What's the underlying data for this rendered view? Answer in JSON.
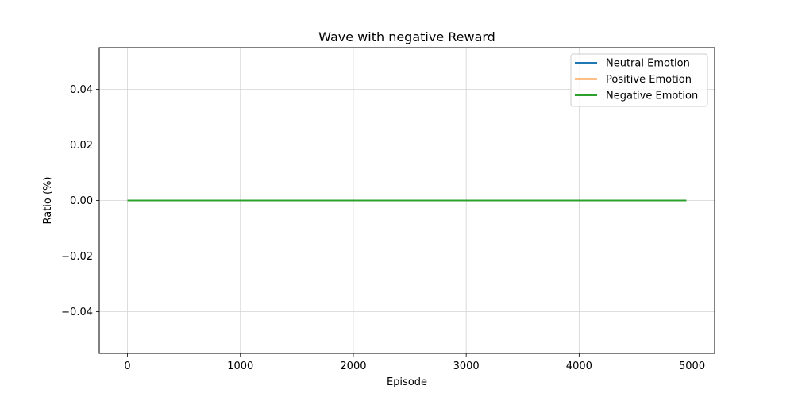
{
  "chart_data": {
    "type": "line",
    "title": "Wave with negative Reward",
    "xlabel": "Episode",
    "ylabel": "Ratio (%)",
    "xlim": [
      -250,
      5200
    ],
    "ylim": [
      -0.055,
      0.055
    ],
    "xticks": [
      0,
      1000,
      2000,
      3000,
      4000,
      5000
    ],
    "xtick_labels": [
      "0",
      "1000",
      "2000",
      "3000",
      "4000",
      "5000"
    ],
    "yticks": [
      -0.04,
      -0.02,
      0.0,
      0.02,
      0.04
    ],
    "ytick_labels": [
      "−0.04",
      "−0.02",
      "0.00",
      "0.02",
      "0.04"
    ],
    "grid": true,
    "legend_position": "upper right",
    "x": [
      0,
      4950
    ],
    "series": [
      {
        "name": "Neutral Emotion",
        "color": "#1f77b4",
        "values": [
          0,
          0
        ]
      },
      {
        "name": "Positive Emotion",
        "color": "#ff7f0e",
        "values": [
          0,
          0
        ]
      },
      {
        "name": "Negative Emotion",
        "color": "#2ca02c",
        "values": [
          0,
          0
        ]
      }
    ]
  }
}
